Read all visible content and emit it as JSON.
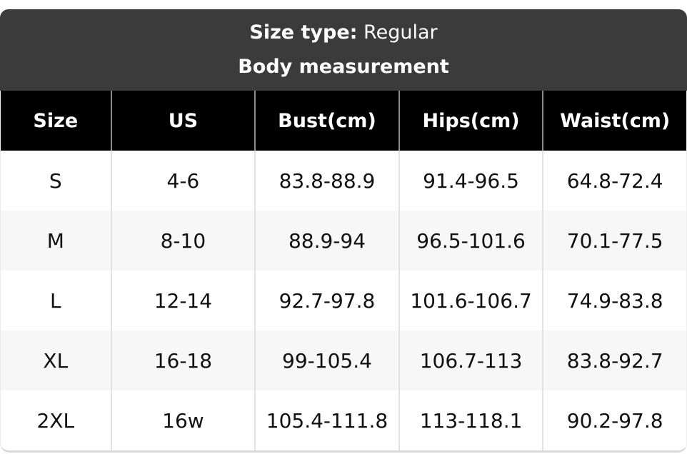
{
  "header": {
    "size_type_label": "Size type:",
    "size_type_value": " Regular",
    "subtitle": "Body measurement"
  },
  "table": {
    "columns": [
      "Size",
      "US",
      "Bust(cm)",
      "Hips(cm)",
      "Waist(cm)"
    ],
    "rows": [
      [
        "S",
        "4-6",
        "83.8-88.9",
        "91.4-96.5",
        "64.8-72.4"
      ],
      [
        "M",
        "8-10",
        "88.9-94",
        "96.5-101.6",
        "70.1-77.5"
      ],
      [
        "L",
        "12-14",
        "92.7-97.8",
        "101.6-106.7",
        "74.9-83.8"
      ],
      [
        "XL",
        "16-18",
        "99-105.4",
        "106.7-113",
        "83.8-92.7"
      ],
      [
        "2XL",
        "16w",
        "105.4-111.8",
        "113-118.1",
        "90.2-97.8"
      ]
    ]
  },
  "colors": {
    "band_background": "#3b3b3b",
    "table_header_background": "#000000",
    "header_text": "#ffffff",
    "body_text": "#111111",
    "alt_row_background": "#f7f7f7",
    "header_divider": "#8a8a8a",
    "body_divider": "#e2e2e2"
  }
}
